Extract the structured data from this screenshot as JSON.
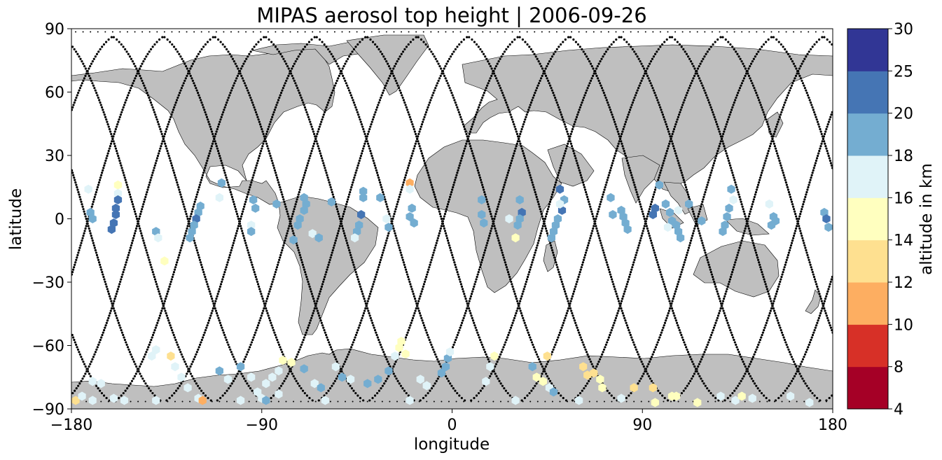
{
  "chart_data": {
    "type": "scatter",
    "title": "MIPAS aerosol top height | 2006-09-26",
    "xlabel": "longitude",
    "ylabel": "latitude",
    "xlim": [
      -180,
      180
    ],
    "ylim": [
      -90,
      90
    ],
    "xticks": [
      "−180",
      "−90",
      "0",
      "90",
      "180"
    ],
    "xtick_values": [
      -180,
      -90,
      0,
      90,
      180
    ],
    "yticks": [
      "−90",
      "−60",
      "−30",
      "0",
      "30",
      "60",
      "90"
    ],
    "ytick_values": [
      -90,
      -60,
      -30,
      0,
      30,
      60,
      90
    ],
    "background": "world land map (grey land, white ocean)",
    "track_series": "MIPAS orbit tracks (black dots)",
    "colorbar": {
      "label": "altitude in km",
      "boundaries": [
        4,
        8,
        10,
        12,
        14,
        16,
        18,
        20,
        25,
        30
      ],
      "tick_labels": [
        "4",
        "8",
        "10",
        "12",
        "14",
        "16",
        "18",
        "20",
        "25",
        "30"
      ],
      "colors": [
        "#a50026",
        "#d73027",
        "#f46d43",
        "#fdae61",
        "#fee090",
        "#ffffbf",
        "#e0f3f8",
        "#abd9e9",
        "#74add1",
        "#4575b4",
        "#313695"
      ]
    },
    "points": [
      [
        -172,
        14,
        17
      ],
      [
        -171,
        3,
        19
      ],
      [
        -170,
        0,
        19
      ],
      [
        -158,
        16,
        15
      ],
      [
        -158,
        12,
        17
      ],
      [
        -158,
        9,
        21
      ],
      [
        -159,
        5,
        21
      ],
      [
        -159,
        2,
        22
      ],
      [
        -160,
        -2,
        22
      ],
      [
        -161,
        -5,
        22
      ],
      [
        -140,
        -6,
        19
      ],
      [
        -139,
        -9,
        17
      ],
      [
        -136,
        -20,
        15
      ],
      [
        -119,
        6,
        19
      ],
      [
        -120,
        3,
        19
      ],
      [
        -121,
        0,
        22
      ],
      [
        -122,
        -3,
        19
      ],
      [
        -123,
        -6,
        19
      ],
      [
        -124,
        -9,
        19
      ],
      [
        -109,
        17,
        19
      ],
      [
        -110,
        10,
        17
      ],
      [
        -94,
        9,
        19
      ],
      [
        -93,
        5,
        19
      ],
      [
        -95,
        -3,
        17
      ],
      [
        -95,
        -6,
        19
      ],
      [
        -83,
        7,
        19
      ],
      [
        -70,
        10,
        19
      ],
      [
        -69,
        7,
        19
      ],
      [
        -70,
        4,
        19
      ],
      [
        -72,
        0,
        19
      ],
      [
        -73,
        -3,
        19
      ],
      [
        -75,
        -10,
        19
      ],
      [
        -66,
        -7,
        17
      ],
      [
        -63,
        -9,
        19
      ],
      [
        -57,
        8,
        19
      ],
      [
        -42,
        13,
        19
      ],
      [
        -42,
        10,
        19
      ],
      [
        -43,
        2,
        22
      ],
      [
        -44,
        -3,
        19
      ],
      [
        -45,
        -6,
        19
      ],
      [
        -46,
        -9,
        17
      ],
      [
        -34,
        10,
        19
      ],
      [
        -31,
        0,
        17
      ],
      [
        -30,
        -4,
        19
      ],
      [
        -20,
        17,
        11
      ],
      [
        -20,
        14,
        17
      ],
      [
        -19,
        5,
        19
      ],
      [
        -20,
        1,
        19
      ],
      [
        -18,
        -2,
        19
      ],
      [
        14,
        9,
        19
      ],
      [
        14,
        2,
        19
      ],
      [
        15,
        -2,
        19
      ],
      [
        32,
        9,
        19
      ],
      [
        33,
        3,
        22
      ],
      [
        32,
        0,
        19
      ],
      [
        31,
        -3,
        19
      ],
      [
        30,
        -9,
        15
      ],
      [
        27,
        0,
        17
      ],
      [
        51,
        14,
        21
      ],
      [
        52,
        4,
        21
      ],
      [
        50,
        0,
        19
      ],
      [
        49,
        -3,
        19
      ],
      [
        48,
        -6,
        19
      ],
      [
        47,
        -9,
        19
      ],
      [
        53,
        9,
        19
      ],
      [
        51,
        7,
        17
      ],
      [
        75,
        10,
        19
      ],
      [
        76,
        2,
        19
      ],
      [
        80,
        4,
        19
      ],
      [
        81,
        1,
        19
      ],
      [
        82,
        -2,
        19
      ],
      [
        83,
        -5,
        19
      ],
      [
        98,
        16,
        19
      ],
      [
        96,
        5,
        22
      ],
      [
        95,
        2,
        22
      ],
      [
        101,
        7,
        19
      ],
      [
        103,
        3,
        19
      ],
      [
        104,
        -1,
        19
      ],
      [
        106,
        -3,
        19
      ],
      [
        107,
        -6,
        19
      ],
      [
        108,
        -9,
        19
      ],
      [
        107,
        4,
        17
      ],
      [
        102,
        -4,
        17
      ],
      [
        112,
        7,
        19
      ],
      [
        118,
        -1,
        19
      ],
      [
        132,
        14,
        19
      ],
      [
        133,
        9,
        17
      ],
      [
        131,
        5,
        19
      ],
      [
        130,
        1,
        19
      ],
      [
        129,
        -3,
        19
      ],
      [
        128,
        -6,
        19
      ],
      [
        150,
        7,
        17
      ],
      [
        152,
        1,
        19
      ],
      [
        153,
        -1,
        19
      ],
      [
        151,
        -3,
        19
      ],
      [
        176,
        3,
        19
      ],
      [
        177,
        0,
        22
      ],
      [
        178,
        -4,
        19
      ],
      [
        -170,
        -77,
        17
      ],
      [
        -166,
        -78,
        17
      ],
      [
        -178,
        -86,
        13
      ],
      [
        -160,
        -85,
        17
      ],
      [
        -175,
        -84,
        17
      ],
      [
        -140,
        -62,
        17
      ],
      [
        -142,
        -65,
        17
      ],
      [
        -133,
        -65,
        13
      ],
      [
        -131,
        -70,
        17
      ],
      [
        -128,
        -75,
        17
      ],
      [
        -125,
        -80,
        17
      ],
      [
        -120,
        -85,
        17
      ],
      [
        -118,
        -86,
        11
      ],
      [
        -110,
        -72,
        19
      ],
      [
        -106,
        -76,
        17
      ],
      [
        -100,
        -70,
        19
      ],
      [
        -95,
        -75,
        17
      ],
      [
        -92,
        -82,
        17
      ],
      [
        -90,
        -85,
        17
      ],
      [
        -88,
        -86,
        19
      ],
      [
        -80,
        -67,
        15
      ],
      [
        -76,
        -68,
        15
      ],
      [
        -82,
        -72,
        17
      ],
      [
        -85,
        -75,
        17
      ],
      [
        -88,
        -78,
        17
      ],
      [
        -82,
        -83,
        17
      ],
      [
        -70,
        -71,
        19
      ],
      [
        -65,
        -78,
        17
      ],
      [
        -62,
        -80,
        19
      ],
      [
        -55,
        -70,
        17
      ],
      [
        -52,
        -75,
        19
      ],
      [
        -48,
        -76,
        17
      ],
      [
        -40,
        -78,
        19
      ],
      [
        -35,
        -76,
        19
      ],
      [
        -30,
        -72,
        19
      ],
      [
        -27,
        -65,
        17
      ],
      [
        -25,
        -61,
        15
      ],
      [
        -24,
        -58,
        15
      ],
      [
        -22,
        -64,
        15
      ],
      [
        -15,
        -76,
        17
      ],
      [
        -12,
        -79,
        17
      ],
      [
        -5,
        -73,
        19
      ],
      [
        -3,
        -70,
        19
      ],
      [
        -2,
        -66,
        19
      ],
      [
        -1,
        -63,
        17
      ],
      [
        20,
        -65,
        15
      ],
      [
        18,
        -70,
        17
      ],
      [
        16,
        -77,
        17
      ],
      [
        38,
        -70,
        19
      ],
      [
        40,
        -75,
        15
      ],
      [
        43,
        -77,
        15
      ],
      [
        45,
        -65,
        13
      ],
      [
        46,
        -80,
        17
      ],
      [
        48,
        -82,
        19
      ],
      [
        62,
        -70,
        13
      ],
      [
        64,
        -74,
        13
      ],
      [
        67,
        -73,
        13
      ],
      [
        70,
        -76,
        15
      ],
      [
        71,
        -80,
        15
      ],
      [
        86,
        -80,
        13
      ],
      [
        95,
        -80,
        13
      ],
      [
        96,
        -87,
        15
      ],
      [
        104,
        -84,
        15
      ],
      [
        106,
        -84,
        15
      ],
      [
        116,
        -87,
        15
      ],
      [
        127,
        -84,
        17
      ],
      [
        134,
        -86,
        17
      ],
      [
        137,
        -84,
        15
      ],
      [
        160,
        -84,
        17
      ],
      [
        169,
        -87,
        17
      ],
      [
        -170,
        -86,
        17
      ],
      [
        -155,
        -86,
        17
      ],
      [
        -140,
        -86,
        17
      ],
      [
        -100,
        -86,
        17
      ],
      [
        -60,
        -86,
        17
      ],
      [
        -20,
        -86,
        17
      ],
      [
        30,
        -86,
        17
      ],
      [
        60,
        -86,
        17
      ],
      [
        80,
        -85,
        17
      ],
      [
        142,
        -85,
        17
      ]
    ]
  }
}
